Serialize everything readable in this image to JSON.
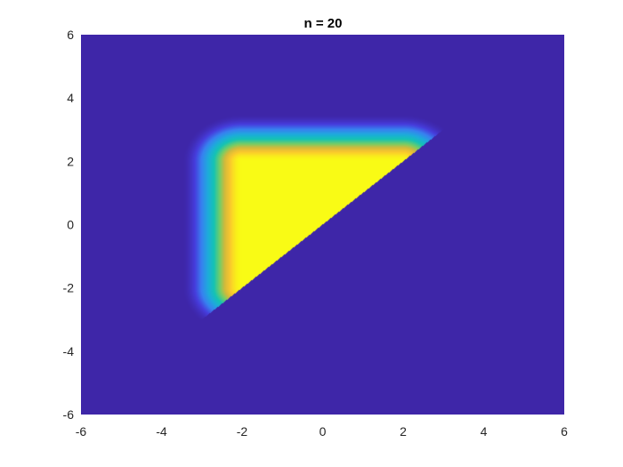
{
  "chart_data": {
    "type": "heatmap",
    "title": "n = 20",
    "xlabel": "",
    "ylabel": "",
    "xlim": [
      -6,
      6
    ],
    "ylim": [
      -6,
      6
    ],
    "xticks": [
      -6,
      -4,
      -2,
      0,
      2,
      4,
      6
    ],
    "yticks": [
      -6,
      -4,
      -2,
      0,
      2,
      4,
      6
    ],
    "xtick_labels": [
      "-6",
      "-4",
      "-2",
      "0",
      "2",
      "4",
      "6"
    ],
    "ytick_labels": [
      "-6",
      "-4",
      "-2",
      "0",
      "2",
      "4",
      "6"
    ],
    "grid": false,
    "colormap": "parula",
    "background_color": "#3e26a8",
    "region": {
      "description": "nonzero values only where y > x; plateau of max value inside the square |x| <= 2, |y| <= 2 with rounded corners, decaying outward over about 1.5 units",
      "half_width": 2,
      "decay_width": 1.5,
      "max_value": 1,
      "min_value": 0
    }
  }
}
